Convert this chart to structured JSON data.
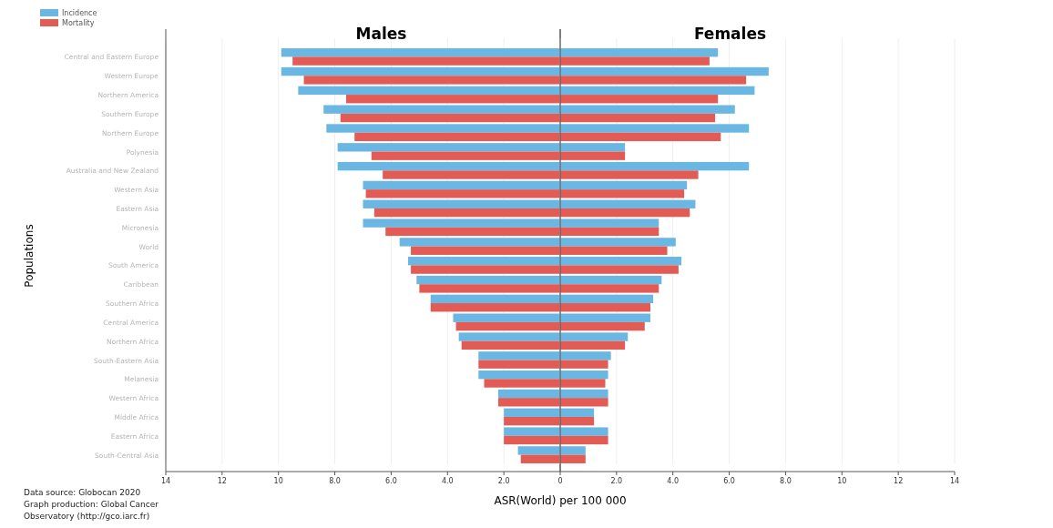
{
  "chart_data": [
    {
      "type": "bar",
      "orientation": "horizontal",
      "title": "Males",
      "ylabel": "Populations",
      "xlabel": "ASR(World) per 100 000",
      "categories": [
        "Central and Eastern Europe",
        "Western Europe",
        "Northern America",
        "Southern Europe",
        "Northern Europe",
        "Polynesia",
        "Australia and New Zealand",
        "Western Asia",
        "Eastern Asia",
        "Micronesia",
        "World",
        "South America",
        "Caribbean",
        "Southern Africa",
        "Central America",
        "Northern Africa",
        "South-Eastern Asia",
        "Melanesia",
        "Western Africa",
        "Middle Africa",
        "Eastern Africa",
        "South-Central Asia"
      ],
      "series": [
        {
          "name": "Incidence",
          "color": "#6bb7e3",
          "values": [
            9.9,
            9.9,
            9.3,
            8.4,
            8.3,
            7.9,
            7.9,
            7.0,
            7.0,
            7.0,
            5.7,
            5.4,
            5.1,
            4.6,
            3.8,
            3.6,
            2.9,
            2.9,
            2.2,
            2.0,
            2.0,
            1.5
          ]
        },
        {
          "name": "Mortality",
          "color": "#e35b55",
          "values": [
            9.5,
            9.1,
            7.6,
            7.8,
            7.3,
            6.7,
            6.3,
            6.9,
            6.6,
            6.2,
            5.3,
            5.3,
            5.0,
            4.6,
            3.7,
            3.5,
            2.9,
            2.7,
            2.2,
            2.0,
            2.0,
            1.4
          ]
        }
      ],
      "xlim": [
        14,
        0
      ],
      "xticks": [
        14,
        12,
        10,
        {
          "value": 8,
          "label": "8.0"
        },
        {
          "value": 6,
          "label": "6.0"
        },
        {
          "value": 4,
          "label": "4.0"
        },
        {
          "value": 2,
          "label": "2.0"
        }
      ],
      "grid": "x",
      "legend": "top left",
      "annotations": [
        "Data source: Globocan 2020",
        "Graph production: Global Cancer Observatory (http://gco.iarc.fr)"
      ]
    },
    {
      "type": "bar",
      "orientation": "horizontal",
      "title": "Females",
      "categories": [
        null,
        null,
        null,
        null,
        null,
        null,
        null,
        null,
        null,
        null,
        null,
        null,
        null,
        null,
        null,
        null,
        null,
        null,
        null,
        null,
        null,
        null
      ],
      "series": [
        {
          "color": "#6bb7e3",
          "values": [
            5.6,
            7.4,
            6.9,
            6.2,
            6.7,
            2.3,
            6.7,
            4.5,
            4.8,
            3.5,
            4.1,
            4.3,
            3.6,
            3.3,
            3.2,
            2.4,
            1.8,
            1.7,
            1.7,
            1.2,
            1.7,
            0.9
          ]
        },
        {
          "color": "#e35b55",
          "values": [
            5.3,
            6.6,
            5.6,
            5.5,
            5.7,
            2.3,
            4.9,
            4.4,
            4.6,
            3.5,
            3.8,
            4.2,
            3.5,
            3.2,
            3.0,
            2.3,
            1.7,
            1.6,
            1.7,
            1.2,
            1.7,
            0.9
          ]
        }
      ],
      "xlim": [
        0,
        14
      ],
      "xticks": [
        0,
        {
          "value": 2,
          "label": "2.0"
        },
        {
          "value": 4,
          "label": "4.0"
        },
        {
          "value": 6,
          "label": "6.0"
        },
        {
          "value": 8,
          "label": "8.0"
        },
        10,
        12,
        14
      ],
      "grid": "x",
      "tick_labels": "x"
    }
  ]
}
